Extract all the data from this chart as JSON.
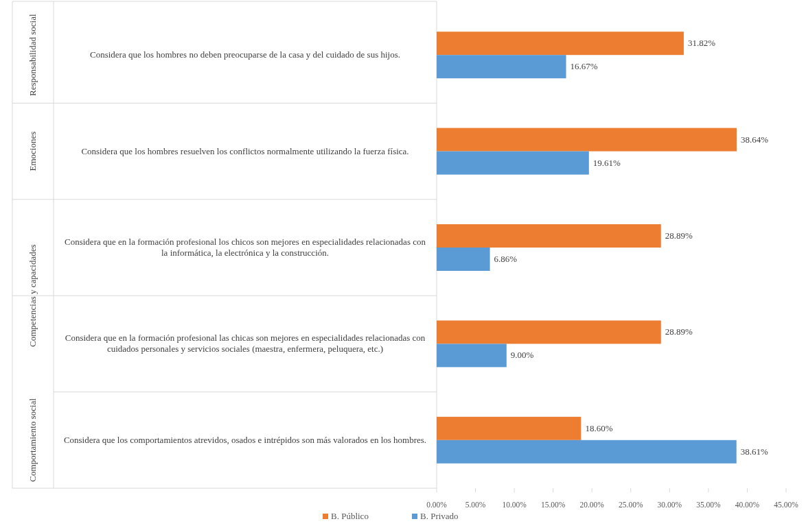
{
  "chart_data": {
    "type": "bar",
    "orientation": "horizontal",
    "categories": [
      "Considera que los hombres no deben preocuparse de la casa y del cuidado de sus hijos.",
      "Considera que los hombres resuelven los conflictos normalmente utilizando la fuerza física.",
      "Considera que en la formación profesional los chicos son mejores en especialidades relacionadas con la informática, la electrónica y la construcción.",
      "Considera que en la formación profesional las chicas son mejores en especialidades relacionadas con cuidados personales y servicios sociales (maestra, enfermera, peluquera, etc.)",
      "Considera que los comportamientos atrevidos, osados e intrépidos son más valorados en los hombres."
    ],
    "series": [
      {
        "name": "B. Público",
        "color": "#ed7d31",
        "values": [
          31.82,
          38.64,
          28.89,
          28.89,
          18.6
        ],
        "value_labels": [
          "31.82%",
          "38.64%",
          "28.89%",
          "28.89%",
          "18.60%"
        ]
      },
      {
        "name": "B. Privado",
        "color": "#5b9bd5",
        "values": [
          16.67,
          19.61,
          6.86,
          9.0,
          38.61
        ],
        "value_labels": [
          "16.67%",
          "19.61%",
          "6.86%",
          "9.00%",
          "38.61%"
        ]
      }
    ],
    "xlim": [
      0,
      45
    ],
    "xticks": [
      {
        "value": 0,
        "label": "0.00%"
      },
      {
        "value": 5,
        "label": "5.00%"
      },
      {
        "value": 10,
        "label": "10.00%"
      },
      {
        "value": 15,
        "label": "15.00%"
      },
      {
        "value": 20,
        "label": "20.00%"
      },
      {
        "value": 25,
        "label": "25.00%"
      },
      {
        "value": 30,
        "label": "30.00%"
      },
      {
        "value": 35,
        "label": "35.00%"
      },
      {
        "value": 40,
        "label": "40.00%"
      },
      {
        "value": 45,
        "label": "45.00%"
      }
    ],
    "annotations": [
      "Responsabilidad social",
      "Emociones",
      "Competencias y capacidades",
      "Comportamiento social"
    ],
    "grid": false,
    "legend": "bottom"
  }
}
